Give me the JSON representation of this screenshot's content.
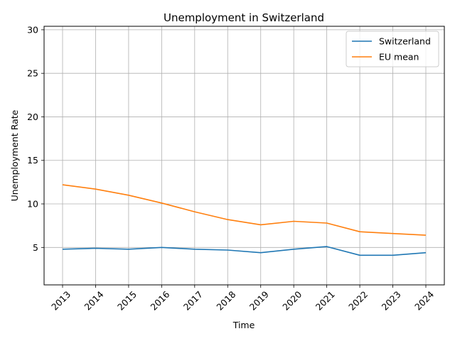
{
  "chart_data": {
    "type": "line",
    "title": "Unemployment in Switzerland",
    "xlabel": "Time",
    "ylabel": "Unemployment Rate",
    "x": [
      "2013",
      "2014",
      "2015",
      "2016",
      "2017",
      "2018",
      "2019",
      "2020",
      "2021",
      "2022",
      "2023",
      "2024"
    ],
    "series": [
      {
        "name": "Switzerland",
        "color": "#1f77b4",
        "values": [
          4.8,
          4.9,
          4.8,
          5.0,
          4.8,
          4.7,
          4.4,
          4.8,
          5.1,
          4.1,
          4.1,
          4.4
        ]
      },
      {
        "name": "EU mean",
        "color": "#ff7f0e",
        "values": [
          12.2,
          11.7,
          11.0,
          10.1,
          9.1,
          8.2,
          7.6,
          8.0,
          7.8,
          6.8,
          6.6,
          6.4
        ]
      }
    ],
    "ylim": [
      0.7,
      30.4
    ],
    "yticks": [
      5,
      10,
      15,
      20,
      25,
      30
    ],
    "grid": true,
    "legend": "top-right"
  }
}
